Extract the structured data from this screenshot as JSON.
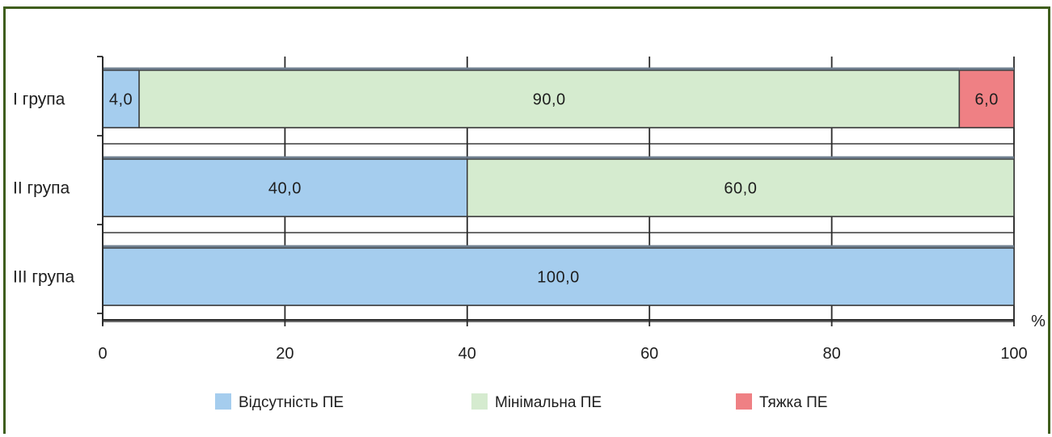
{
  "chart_data": {
    "type": "bar",
    "orientation": "horizontal",
    "stacked": true,
    "categories": [
      "I група",
      "II група",
      "III група"
    ],
    "series": [
      {
        "name": "Відсутність ПЕ",
        "values": [
          4.0,
          40.0,
          100.0
        ],
        "labels": [
          "4,0",
          "40,0",
          "100,0"
        ],
        "color": "#a5cdee"
      },
      {
        "name": "Мінімальна ПЕ",
        "values": [
          90.0,
          60.0,
          0
        ],
        "labels": [
          "90,0",
          "60,0",
          ""
        ],
        "color": "#d5ebcf"
      },
      {
        "name": "Тяжка ПЕ",
        "values": [
          6.0,
          0,
          0
        ],
        "labels": [
          "6,0",
          "",
          ""
        ],
        "color": "#ef8084"
      }
    ],
    "x_ticks": [
      "0",
      "20",
      "40",
      "60",
      "80",
      "100"
    ],
    "xlim": [
      0,
      100
    ],
    "unit_label": "%",
    "grid": true,
    "legend_position": "bottom"
  },
  "colors": {
    "frame": "#3f5e1d",
    "axis": "#2a2a2a"
  }
}
